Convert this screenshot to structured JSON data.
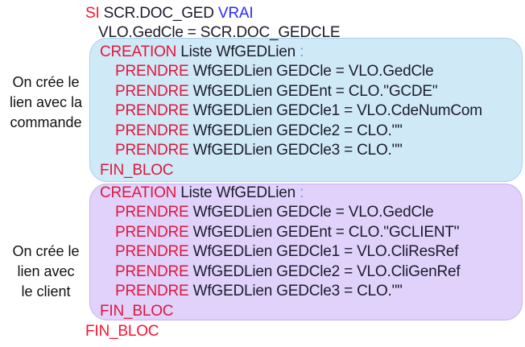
{
  "colors": {
    "keyword": "#e0163c",
    "boolean": "#2a2aff",
    "block1_bg": "#d0e9f6",
    "block2_bg": "#e0d2fb"
  },
  "header": [
    {
      "kw": "SI",
      "text": " SCR.DOC_GED ",
      "bool": "VRAI"
    },
    {
      "text": "VLO.GedCle = SCR.DOC_GEDCLE"
    }
  ],
  "block1": {
    "note": [
      "On crée le",
      "lien avec la",
      "commande"
    ],
    "creation": {
      "kw": "CREATION",
      "text": " Liste WfGEDLien ",
      "colon": ":"
    },
    "lines": [
      {
        "kw": "PRENDRE",
        "text": " WfGEDLien GEDCle = VLO.GedCle"
      },
      {
        "kw": "PRENDRE",
        "text": " WfGEDLien GEDEnt = CLO.\"GCDE\""
      },
      {
        "kw": "PRENDRE",
        "text": " WfGEDLien GEDCle1 = VLO.CdeNumCom"
      },
      {
        "kw": "PRENDRE",
        "text": " WfGEDLien GEDCle2 = CLO.\"\""
      },
      {
        "kw": "PRENDRE",
        "text": " WfGEDLien GEDCle3 = CLO.\"\""
      }
    ],
    "end": "FIN_BLOC"
  },
  "block2": {
    "note": [
      "On crée le",
      "lien avec",
      "le client"
    ],
    "creation": {
      "kw": "CREATION",
      "text": " Liste WfGEDLien ",
      "colon": ":"
    },
    "lines": [
      {
        "kw": "PRENDRE",
        "text": " WfGEDLien GEDCle = VLO.GedCle"
      },
      {
        "kw": "PRENDRE",
        "text": " WfGEDLien GEDEnt = CLO.\"GCLIENT\""
      },
      {
        "kw": "PRENDRE",
        "text": " WfGEDLien GEDCle1 = VLO.CliResRef"
      },
      {
        "kw": "PRENDRE",
        "text": " WfGEDLien GEDCle2 = VLO.CliGenRef"
      },
      {
        "kw": "PRENDRE",
        "text": " WfGEDLien GEDCle3 = CLO.\"\""
      }
    ],
    "end": "FIN_BLOC"
  },
  "footer": "FIN_BLOC"
}
